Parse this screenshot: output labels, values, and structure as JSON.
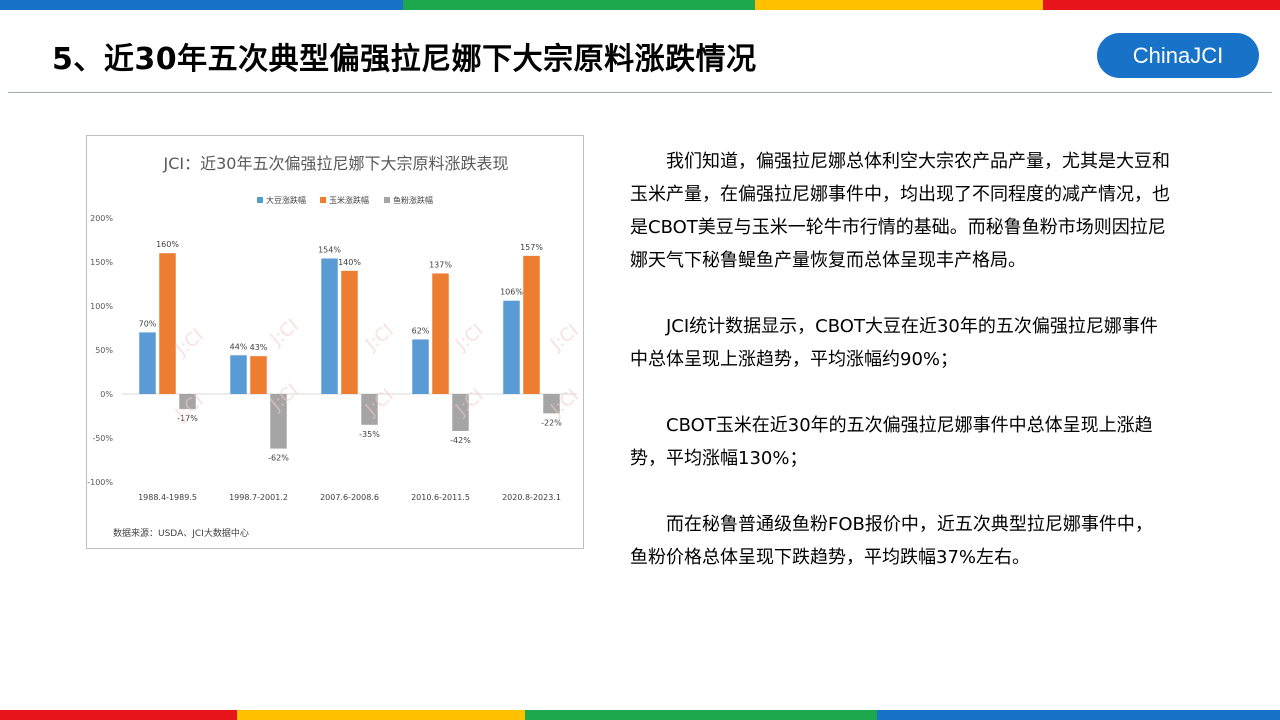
{
  "page": {
    "title": "5、近30年五次典型偏强拉尼娜下大宗原料涨跌情况",
    "brand": "ChinaJCI",
    "stripe_colors_top": [
      "#1872C8",
      "#1EA84D",
      "#FFC000",
      "#E8141B"
    ],
    "stripe_colors_bottom": [
      "#E8141B",
      "#FFC000",
      "#1EA84D",
      "#1872C8"
    ]
  },
  "paragraphs": [
    "我们知道，偏强拉尼娜总体利空大宗农产品产量，尤其是大豆和玉米产量，在偏强拉尼娜事件中，均出现了不同程度的减产情况，也是CBOT美豆与玉米一轮牛市行情的基础。而秘鲁鱼粉市场则因拉尼娜天气下秘鲁鳀鱼产量恢复而总体呈现丰产格局。",
    "JCI统计数据显示，CBOT大豆在近30年的五次偏强拉尼娜事件中总体呈现上涨趋势，平均涨幅约90%；",
    "CBOT玉米在近30年的五次偏强拉尼娜事件中总体呈现上涨趋势，平均涨幅130%；",
    "而在秘鲁普通级鱼粉FOB报价中，近五次典型拉尼娜事件中，鱼粉价格总体呈现下跌趋势，平均跌幅37%左右。"
  ],
  "chart_data": {
    "type": "bar",
    "title": "JCI：近30年五次偏强拉尼娜下大宗原料涨跌表现",
    "categories": [
      "1988.4-1989.5",
      "1998.7-2001.2",
      "2007.6-2008.6",
      "2010.6-2011.5",
      "2020.8-2023.1"
    ],
    "series": [
      {
        "name": "大豆涨跌幅",
        "color": "#5B9BD5",
        "values": [
          70,
          44,
          154,
          62,
          106
        ]
      },
      {
        "name": "玉米涨跌幅",
        "color": "#ED7D31",
        "values": [
          160,
          43,
          140,
          137,
          157
        ]
      },
      {
        "name": "鱼粉涨跌幅",
        "color": "#A5A5A5",
        "values": [
          -17,
          -62,
          -35,
          -42,
          -22
        ]
      }
    ],
    "ylim": [
      -100,
      200
    ],
    "yticks": [
      200,
      150,
      100,
      50,
      0,
      -50,
      -100
    ],
    "value_suffix": "%",
    "legend_position": "top",
    "grid": false,
    "source": "数据来源：USDA、JCI大数据中心"
  }
}
